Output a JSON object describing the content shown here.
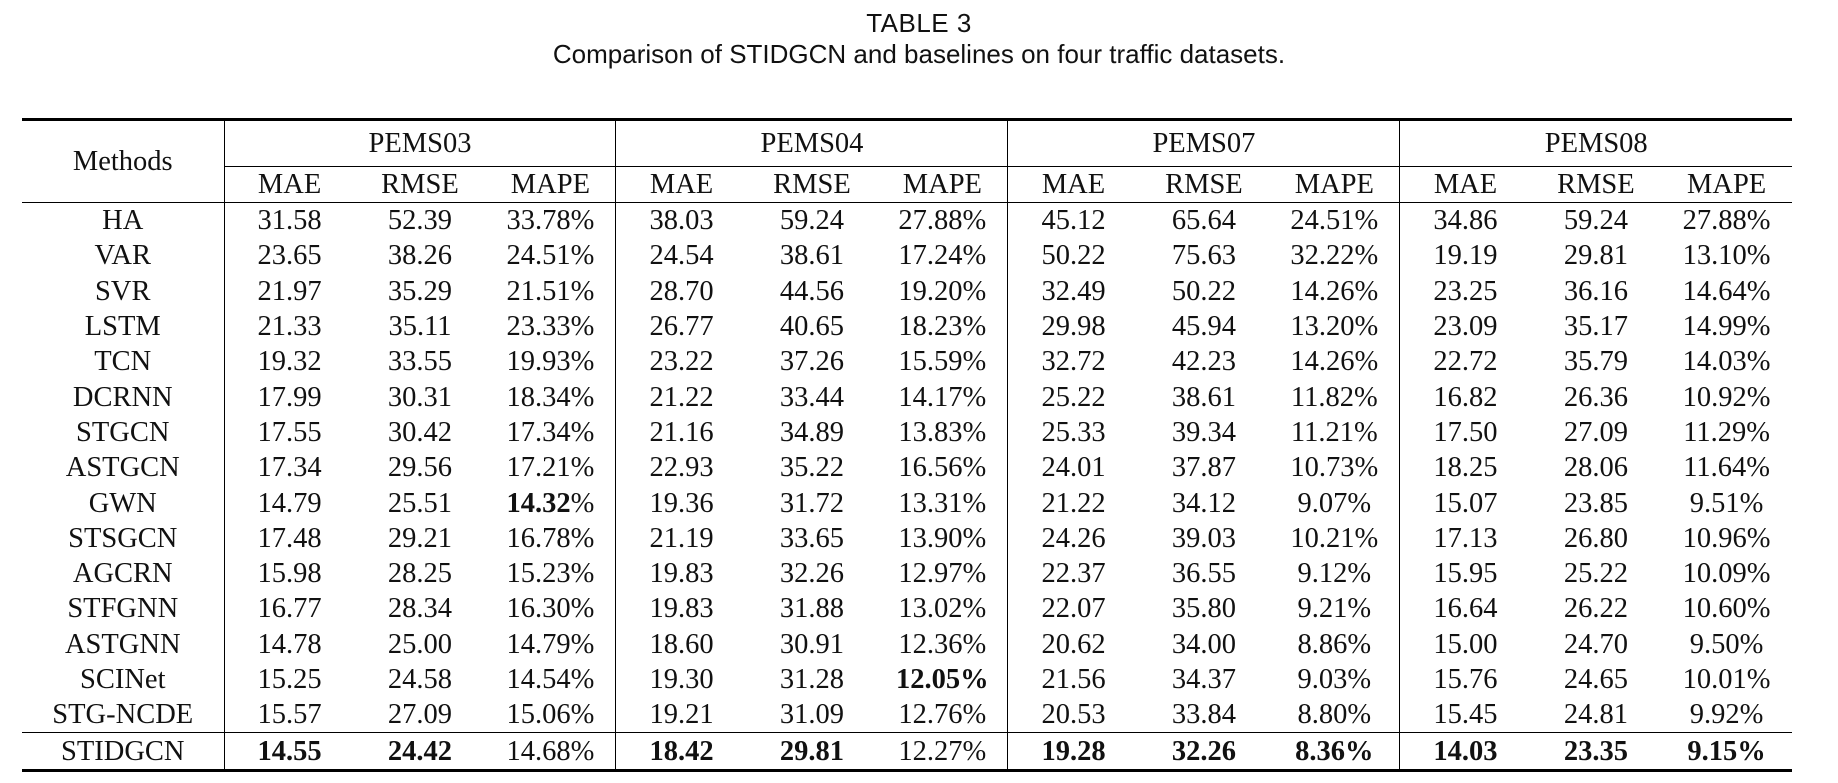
{
  "caption": {
    "label": "TABLE 3",
    "text": "Comparison of STIDGCN and baselines on four traffic datasets."
  },
  "header": {
    "methods": "Methods",
    "datasets": [
      "PEMS03",
      "PEMS04",
      "PEMS07",
      "PEMS08"
    ],
    "metrics": [
      "MAE",
      "RMSE",
      "MAPE"
    ]
  },
  "rows": [
    {
      "method": "HA",
      "values": [
        "31.58",
        "52.39",
        "33.78%",
        "38.03",
        "59.24",
        "27.88%",
        "45.12",
        "65.64",
        "24.51%",
        "34.86",
        "59.24",
        "27.88%"
      ],
      "bold": []
    },
    {
      "method": "VAR",
      "values": [
        "23.65",
        "38.26",
        "24.51%",
        "24.54",
        "38.61",
        "17.24%",
        "50.22",
        "75.63",
        "32.22%",
        "19.19",
        "29.81",
        "13.10%"
      ],
      "bold": []
    },
    {
      "method": "SVR",
      "values": [
        "21.97",
        "35.29",
        "21.51%",
        "28.70",
        "44.56",
        "19.20%",
        "32.49",
        "50.22",
        "14.26%",
        "23.25",
        "36.16",
        "14.64%"
      ],
      "bold": []
    },
    {
      "method": "LSTM",
      "values": [
        "21.33",
        "35.11",
        "23.33%",
        "26.77",
        "40.65",
        "18.23%",
        "29.98",
        "45.94",
        "13.20%",
        "23.09",
        "35.17",
        "14.99%"
      ],
      "bold": []
    },
    {
      "method": "TCN",
      "values": [
        "19.32",
        "33.55",
        "19.93%",
        "23.22",
        "37.26",
        "15.59%",
        "32.72",
        "42.23",
        "14.26%",
        "22.72",
        "35.79",
        "14.03%"
      ],
      "bold": []
    },
    {
      "method": "DCRNN",
      "values": [
        "17.99",
        "30.31",
        "18.34%",
        "21.22",
        "33.44",
        "14.17%",
        "25.22",
        "38.61",
        "11.82%",
        "16.82",
        "26.36",
        "10.92%"
      ],
      "bold": []
    },
    {
      "method": "STGCN",
      "values": [
        "17.55",
        "30.42",
        "17.34%",
        "21.16",
        "34.89",
        "13.83%",
        "25.33",
        "39.34",
        "11.21%",
        "17.50",
        "27.09",
        "11.29%"
      ],
      "bold": []
    },
    {
      "method": "ASTGCN",
      "values": [
        "17.34",
        "29.56",
        "17.21%",
        "22.93",
        "35.22",
        "16.56%",
        "24.01",
        "37.87",
        "10.73%",
        "18.25",
        "28.06",
        "11.64%"
      ],
      "bold": []
    },
    {
      "method": "GWN",
      "values": [
        "14.79",
        "25.51",
        "14.32%",
        "19.36",
        "31.72",
        "13.31%",
        "21.22",
        "34.12",
        "9.07%",
        "15.07",
        "23.85",
        "9.51%"
      ],
      "bold": [
        2
      ]
    },
    {
      "method": "STSGCN",
      "values": [
        "17.48",
        "29.21",
        "16.78%",
        "21.19",
        "33.65",
        "13.90%",
        "24.26",
        "39.03",
        "10.21%",
        "17.13",
        "26.80",
        "10.96%"
      ],
      "bold": []
    },
    {
      "method": "AGCRN",
      "values": [
        "15.98",
        "28.25",
        "15.23%",
        "19.83",
        "32.26",
        "12.97%",
        "22.37",
        "36.55",
        "9.12%",
        "15.95",
        "25.22",
        "10.09%"
      ],
      "bold": []
    },
    {
      "method": "STFGNN",
      "values": [
        "16.77",
        "28.34",
        "16.30%",
        "19.83",
        "31.88",
        "13.02%",
        "22.07",
        "35.80",
        "9.21%",
        "16.64",
        "26.22",
        "10.60%"
      ],
      "bold": []
    },
    {
      "method": "ASTGNN",
      "values": [
        "14.78",
        "25.00",
        "14.79%",
        "18.60",
        "30.91",
        "12.36%",
        "20.62",
        "34.00",
        "8.86%",
        "15.00",
        "24.70",
        "9.50%"
      ],
      "bold": []
    },
    {
      "method": "SCINet",
      "values": [
        "15.25",
        "24.58",
        "14.54%",
        "19.30",
        "31.28",
        "12.05%",
        "21.56",
        "34.37",
        "9.03%",
        "15.76",
        "24.65",
        "10.01%"
      ],
      "bold": [
        5
      ]
    },
    {
      "method": "STG-NCDE",
      "values": [
        "15.57",
        "27.09",
        "15.06%",
        "19.21",
        "31.09",
        "12.76%",
        "20.53",
        "33.84",
        "8.80%",
        "15.45",
        "24.81",
        "9.92%"
      ],
      "bold": []
    },
    {
      "method": "STIDGCN",
      "values": [
        "14.55",
        "24.42",
        "14.68%",
        "18.42",
        "29.81",
        "12.27%",
        "19.28",
        "32.26",
        "8.36%",
        "14.03",
        "23.35",
        "9.15%"
      ],
      "bold": [
        0,
        1,
        3,
        4,
        6,
        7,
        8,
        9,
        10,
        11
      ],
      "ours": true
    }
  ]
}
